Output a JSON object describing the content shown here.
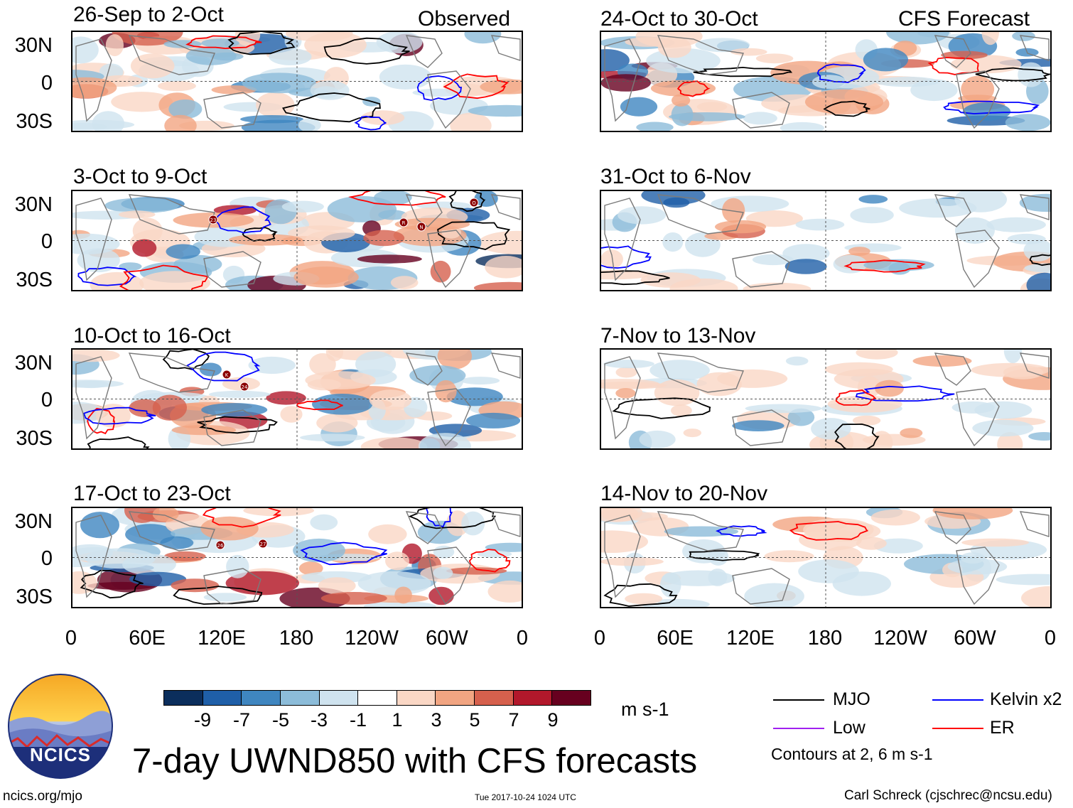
{
  "panels": [
    {
      "id": "p1",
      "title": "26-Sep to 2-Oct",
      "label": "Observed"
    },
    {
      "id": "p2",
      "title": "3-Oct to 9-Oct",
      "label": ""
    },
    {
      "id": "p3",
      "title": "10-Oct to 16-Oct",
      "label": ""
    },
    {
      "id": "p4",
      "title": "17-Oct to 23-Oct",
      "label": ""
    },
    {
      "id": "p5",
      "title": "24-Oct to 30-Oct",
      "label": "CFS Forecast"
    },
    {
      "id": "p6",
      "title": "31-Oct to 6-Nov",
      "label": ""
    },
    {
      "id": "p7",
      "title": "7-Nov to 13-Nov",
      "label": ""
    },
    {
      "id": "p8",
      "title": "14-Nov to 20-Nov",
      "label": ""
    }
  ],
  "lat_labels": [
    "30N",
    "0",
    "30S"
  ],
  "lon_labels": [
    "0",
    "60E",
    "120E",
    "180",
    "120W",
    "60W",
    "0"
  ],
  "storm_labels": [
    "23",
    "R",
    "N",
    "O",
    "K",
    "24",
    "26",
    "27"
  ],
  "colorbar": {
    "colors": [
      "#0b2e5c",
      "#1f5fa8",
      "#3f86c0",
      "#8cbcd9",
      "#cfe3ef",
      "#ffffff",
      "#fad7c5",
      "#f2a582",
      "#d6604d",
      "#b2182b",
      "#67001f"
    ],
    "ticks": [
      "-9",
      "-7",
      "-5",
      "-3",
      "-1",
      "1",
      "3",
      "5",
      "7",
      "9"
    ],
    "units": "m s-1"
  },
  "legend": {
    "mjo": {
      "label": "MJO",
      "color": "#000000"
    },
    "kelvin": {
      "label": "Kelvin x2",
      "color": "#0000ff"
    },
    "low": {
      "label": "Low",
      "color": "#a020f0"
    },
    "er": {
      "label": "ER",
      "color": "#ff0000"
    },
    "contours_note": "Contours at 2, 6 m s-1"
  },
  "logo_text": "NCICS",
  "main_title": "7-day UWND850 with CFS forecasts",
  "footer": {
    "left": "ncics.org/mjo",
    "center": "Tue 2017-10-24 1024 UTC",
    "right": "Carl Schreck (cjschrec@ncsu.edu)"
  }
}
